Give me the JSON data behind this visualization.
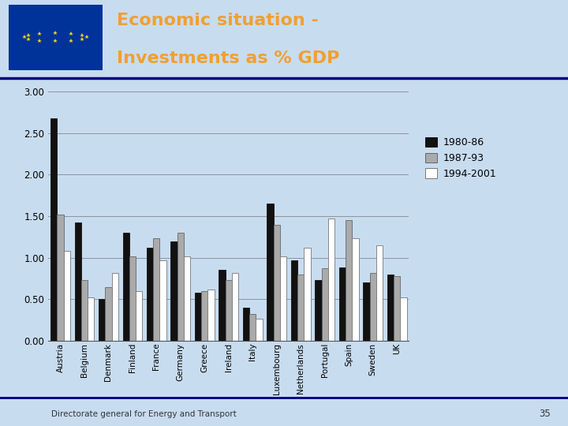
{
  "title_line1": "Economic situation -",
  "title_line2": "Investments as % GDP",
  "title_color": "#F0A030",
  "header_bg": "#ffffff",
  "chart_bg": "#C8DCF0",
  "categories": [
    "Austria",
    "Belgium",
    "Denmark",
    "Finland",
    "France",
    "Germany",
    "Greece",
    "Ireland",
    "Italy",
    "Luxembourg",
    "Netherlands",
    "Portugal",
    "Spain",
    "Sweden",
    "UK"
  ],
  "series": {
    "1980-86": [
      2.68,
      1.42,
      0.5,
      1.3,
      1.12,
      1.2,
      0.58,
      0.85,
      0.4,
      1.65,
      0.97,
      0.73,
      0.88,
      0.7,
      0.8
    ],
    "1987-93": [
      1.52,
      0.73,
      0.65,
      1.02,
      1.23,
      1.3,
      0.6,
      0.73,
      0.32,
      1.4,
      0.8,
      0.87,
      1.45,
      0.82,
      0.78
    ],
    "1994-2001": [
      1.08,
      0.52,
      0.82,
      0.6,
      0.97,
      1.02,
      0.62,
      0.82,
      0.27,
      1.02,
      1.12,
      1.47,
      1.23,
      1.15,
      0.52
    ]
  },
  "bar_colors": {
    "1980-86": "#111111",
    "1987-93": "#aaaaaa",
    "1994-2001": "#ffffff"
  },
  "bar_edge_colors": {
    "1980-86": "#111111",
    "1987-93": "#666666",
    "1994-2001": "#777777"
  },
  "ylim": [
    0.0,
    3.0
  ],
  "yticks": [
    0.0,
    0.5,
    1.0,
    1.5,
    2.0,
    2.5,
    3.0
  ],
  "bar_width": 0.27,
  "separator_color": "#000080",
  "grid_color": "#888888",
  "footer_text": "Directorate general for Energy and Transport",
  "footer_number": "35",
  "flag_blue": "#003399",
  "flag_star": "#FFD700"
}
